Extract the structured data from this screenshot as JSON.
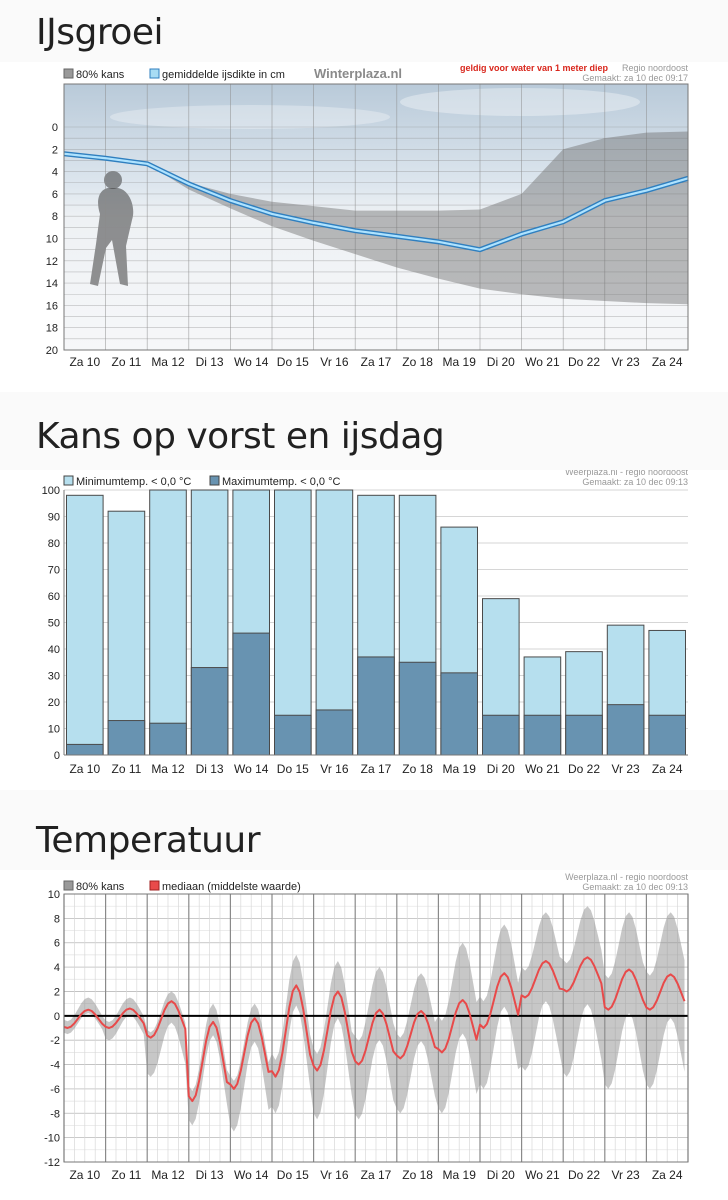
{
  "sections": {
    "ice": {
      "title": "IJsgroei"
    },
    "frost": {
      "title": "Kans op vorst en ijsdag"
    },
    "temp": {
      "title": "Temperatuur"
    }
  },
  "days": [
    "Za 10",
    "Zo 11",
    "Ma 12",
    "Di 13",
    "Wo 14",
    "Do 15",
    "Vr 16",
    "Za 17",
    "Zo 18",
    "Ma 19",
    "Di 20",
    "Wo 21",
    "Do 22",
    "Vr 23",
    "Za 24"
  ],
  "chart_data": [
    {
      "type": "area",
      "title": "IJsgroei",
      "legend": {
        "band": "80% kans",
        "line": "gemiddelde ijsdikte in cm"
      },
      "watermark": "Winterplaza.nl",
      "note": "geldig voor water van 1 meter diep",
      "region": "Regio noordoost",
      "made": "Gemaakt: za 10 dec 09:17",
      "y_inverted": true,
      "ylim": [
        0,
        20
      ],
      "yticks": [
        0,
        2,
        4,
        6,
        8,
        10,
        12,
        14,
        16,
        18,
        20
      ],
      "x": [
        0,
        1,
        2,
        3,
        4,
        5,
        6,
        7,
        8,
        9,
        10,
        11,
        12,
        13,
        14,
        15
      ],
      "mean": [
        2.4,
        2.8,
        3.3,
        5.1,
        6.6,
        7.8,
        8.6,
        9.3,
        9.8,
        10.3,
        11.0,
        9.6,
        8.5,
        6.6,
        5.7,
        4.6
      ],
      "band_low": [
        2.4,
        2.8,
        3.3,
        5.0,
        6.0,
        6.7,
        7.1,
        7.5,
        7.5,
        7.5,
        7.4,
        6.0,
        2.0,
        1.0,
        0.5,
        0.4
      ],
      "band_high": [
        2.4,
        2.8,
        3.3,
        5.6,
        7.3,
        8.9,
        10.2,
        11.4,
        12.6,
        13.6,
        14.5,
        15.0,
        15.4,
        15.6,
        15.8,
        15.9
      ],
      "grid": true
    },
    {
      "type": "bar",
      "legend": {
        "min": "Minimumtemp. < 0,0 °C",
        "max": "Maximumtemp. < 0,0 °C"
      },
      "source": "Weerplaza.nl - regio noordoost",
      "made": "Gemaakt: za 10 dec 09:13",
      "ylim": [
        0,
        100
      ],
      "yticks": [
        0,
        10,
        20,
        30,
        40,
        50,
        60,
        70,
        80,
        90,
        100
      ],
      "series": [
        {
          "name": "Minimumtemp. < 0,0 °C",
          "values": [
            98,
            92,
            100,
            100,
            100,
            100,
            100,
            98,
            98,
            86,
            59,
            37,
            39,
            49,
            47
          ]
        },
        {
          "name": "Maximumtemp. < 0,0 °C",
          "values": [
            4,
            13,
            12,
            33,
            46,
            15,
            17,
            37,
            35,
            31,
            15,
            15,
            15,
            19,
            15
          ]
        }
      ],
      "colors": {
        "min": "#b6dfee",
        "max": "#6893b1"
      }
    },
    {
      "type": "line",
      "legend": {
        "band": "80% kans",
        "line": "mediaan (middelste waarde)"
      },
      "source": "Weerplaza.nl - regio noordoost",
      "made": "Gemaakt: za 10 dec 09:13",
      "ylim": [
        -12,
        10
      ],
      "yticks": [
        10,
        8,
        6,
        4,
        2,
        0,
        -2,
        -4,
        -6,
        -8,
        -10,
        -12
      ],
      "median_daily": [
        {
          "min": -1.0,
          "max": 0.5
        },
        {
          "min": -1.0,
          "max": 0.6
        },
        {
          "min": -1.8,
          "max": 1.2
        },
        {
          "min": -7.0,
          "max": -0.5
        },
        {
          "min": -6.0,
          "max": -0.2
        },
        {
          "min": -5.0,
          "max": 2.5
        },
        {
          "min": -4.5,
          "max": 2.0
        },
        {
          "min": -4.0,
          "max": 0.5
        },
        {
          "min": -3.5,
          "max": 0.4
        },
        {
          "min": -3.0,
          "max": 1.3
        },
        {
          "min": -1.0,
          "max": 3.5
        },
        {
          "min": 1.5,
          "max": 4.5
        },
        {
          "min": 2.0,
          "max": 4.8
        },
        {
          "min": 0.5,
          "max": 3.8
        },
        {
          "min": 0.5,
          "max": 3.4
        }
      ],
      "band_daily": [
        {
          "lo": -1.5,
          "hi": 1.5
        },
        {
          "lo": -2.0,
          "hi": 1.5
        },
        {
          "lo": -5.0,
          "hi": 2.0
        },
        {
          "lo": -9.0,
          "hi": 1.0
        },
        {
          "lo": -9.5,
          "hi": 1.0
        },
        {
          "lo": -8.0,
          "hi": 5.0
        },
        {
          "lo": -8.5,
          "hi": 4.5
        },
        {
          "lo": -8.5,
          "hi": 4.0
        },
        {
          "lo": -8.0,
          "hi": 3.5
        },
        {
          "lo": -8.0,
          "hi": 6.0
        },
        {
          "lo": -6.0,
          "hi": 7.5
        },
        {
          "lo": -4.5,
          "hi": 8.5
        },
        {
          "lo": -5.0,
          "hi": 9.0
        },
        {
          "lo": -6.0,
          "hi": 8.5
        },
        {
          "lo": -6.0,
          "hi": 8.5
        }
      ]
    }
  ]
}
